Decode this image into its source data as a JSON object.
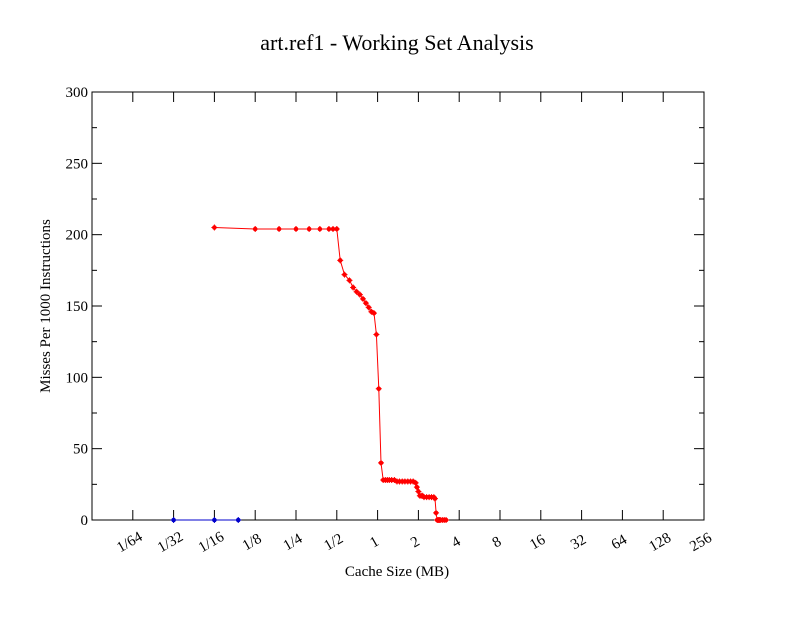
{
  "chart_data": {
    "type": "line",
    "title": "art.ref1 - Working Set Analysis",
    "xlabel": "Cache Size (MB)",
    "ylabel": "Misses Per 1000 Instructions",
    "x_scale": "log2",
    "xlim": [
      0.0078125,
      256
    ],
    "ylim": [
      0,
      300
    ],
    "grid": false,
    "legend": "none",
    "x_ticks": [
      {
        "value": 0.015625,
        "label": "1/64"
      },
      {
        "value": 0.03125,
        "label": "1/32"
      },
      {
        "value": 0.0625,
        "label": "1/16"
      },
      {
        "value": 0.125,
        "label": "1/8"
      },
      {
        "value": 0.25,
        "label": "1/4"
      },
      {
        "value": 0.5,
        "label": "1/2"
      },
      {
        "value": 1,
        "label": "1"
      },
      {
        "value": 2,
        "label": "2"
      },
      {
        "value": 4,
        "label": "4"
      },
      {
        "value": 8,
        "label": "8"
      },
      {
        "value": 16,
        "label": "16"
      },
      {
        "value": 32,
        "label": "32"
      },
      {
        "value": 64,
        "label": "64"
      },
      {
        "value": 128,
        "label": "128"
      },
      {
        "value": 256,
        "label": "256"
      }
    ],
    "y_ticks": [
      0,
      50,
      100,
      150,
      200,
      250,
      300
    ],
    "series": [
      {
        "color": "#ff0000",
        "x": [
          0.0625,
          0.125,
          0.1875,
          0.25,
          0.3125,
          0.375,
          0.4375,
          0.46875,
          0.5,
          0.53,
          0.57,
          0.62,
          0.66,
          0.7,
          0.74,
          0.78,
          0.82,
          0.86,
          0.9,
          0.94,
          0.98,
          1.02,
          1.06,
          1.1,
          1.14,
          1.18,
          1.22,
          1.27,
          1.33,
          1.39,
          1.45,
          1.52,
          1.59,
          1.67,
          1.75,
          1.83,
          1.91,
          1.95,
          2.0,
          2.05,
          2.1,
          2.15,
          2.2,
          2.3,
          2.4,
          2.5,
          2.6,
          2.65,
          2.7,
          2.75,
          2.8,
          2.85,
          2.9,
          3.0,
          3.1,
          3.2
        ],
        "y": [
          205,
          204,
          204,
          204,
          204,
          204,
          204,
          204,
          204,
          182,
          172,
          168,
          163,
          160,
          158,
          155,
          152,
          149,
          146,
          145,
          130,
          92,
          40,
          28,
          28,
          28,
          28,
          28,
          28,
          27,
          27,
          27,
          27,
          27,
          27,
          27,
          26,
          23,
          20,
          17,
          17,
          17,
          16,
          16,
          16,
          16,
          16,
          15,
          5,
          0,
          0,
          0,
          0,
          0,
          0,
          0
        ]
      },
      {
        "color": "#0000cc",
        "x": [
          0.03125,
          0.0625,
          0.09375
        ],
        "y": [
          0,
          0,
          0
        ]
      }
    ]
  }
}
